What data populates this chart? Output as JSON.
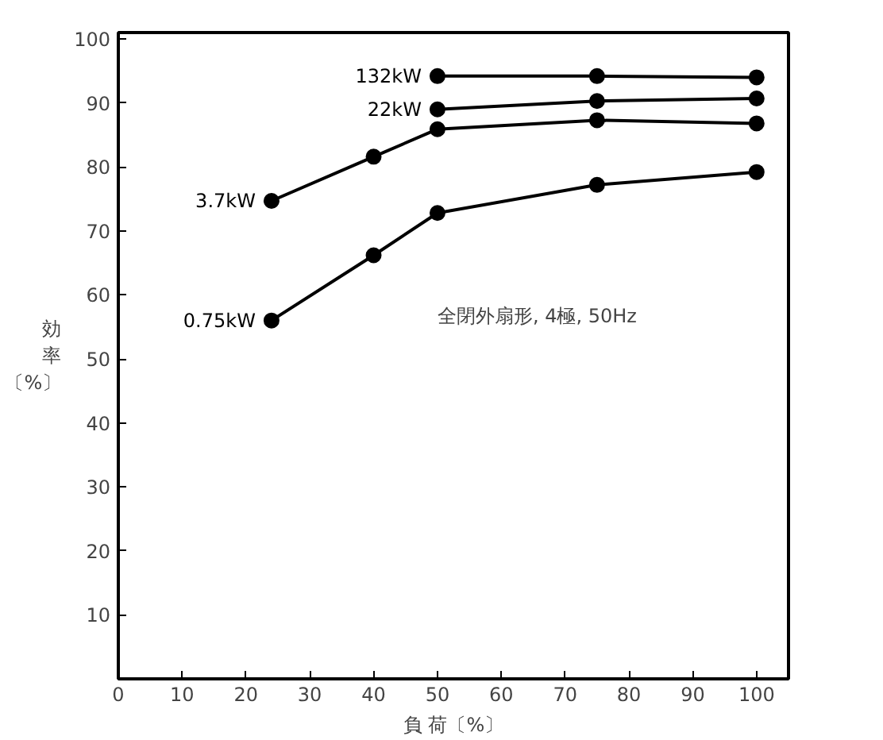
{
  "chart_data": {
    "type": "line",
    "xlabel": "負 荷〔%〕",
    "ylabel": "効率〔%〕",
    "x": [
      24,
      40,
      50,
      75,
      100
    ],
    "series": [
      {
        "name": "132kW",
        "color": "#000000",
        "values": [
          null,
          null,
          94.2,
          94.2,
          94
        ]
      },
      {
        "name": "22kW",
        "color": "#000000",
        "values": [
          null,
          null,
          89,
          90.3,
          90.7
        ]
      },
      {
        "name": "3.7kW",
        "color": "#000000",
        "values": [
          74.7,
          81.6,
          85.9,
          87.3,
          86.8
        ]
      },
      {
        "name": "0.75kW",
        "color": "#000000",
        "values": [
          56,
          66.2,
          72.8,
          77.2,
          79.2
        ]
      }
    ],
    "xlim": [
      0,
      105
    ],
    "ylim": [
      0,
      101
    ],
    "xticks": [
      0,
      10,
      20,
      30,
      40,
      50,
      60,
      70,
      80,
      90,
      100
    ],
    "yticks": [
      10,
      20,
      30,
      40,
      50,
      60,
      70,
      80,
      90,
      100
    ],
    "annotations": [
      "全閉外扇形, 4極, 50Hz"
    ],
    "marker": "circle",
    "line_style": "solid",
    "grid": false
  }
}
